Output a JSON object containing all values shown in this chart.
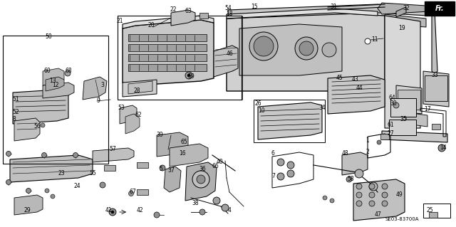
{
  "background_color": "#ffffff",
  "diagram_code": "SE03-83700A",
  "fr_label": "Fr.",
  "text_color": "#000000",
  "line_color": "#000000",
  "gray_fill": "#b8b8b8",
  "light_gray": "#d8d8d8",
  "dark_gray": "#888888",
  "figsize": [
    6.4,
    3.19
  ],
  "dpi": 100
}
